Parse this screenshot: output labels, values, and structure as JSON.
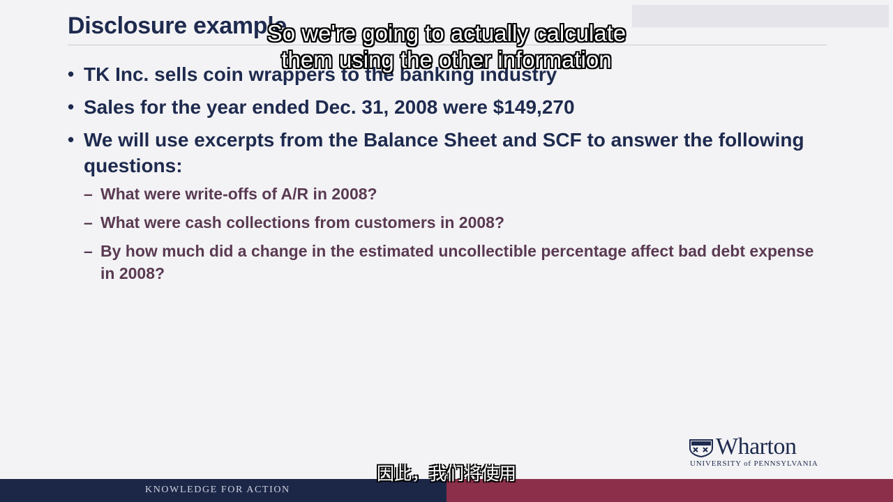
{
  "slide": {
    "title": "Disclosure example",
    "bullets": [
      {
        "text": "TK Inc. sells coin wrappers to the banking industry"
      },
      {
        "text": "Sales for the year ended Dec. 31, 2008 were $149,270"
      },
      {
        "text": "We will use excerpts from the Balance Sheet and SCF to answer the following questions:",
        "sub": [
          "What were write-offs of A/R in 2008?",
          "What were cash collections from customers in 2008?",
          "By how much did a change in the estimated uncollectible percentage affect bad debt expense in 2008?"
        ]
      }
    ],
    "bullet_glyph": "•",
    "sub_glyph": "–"
  },
  "subtitles": {
    "english_line1": "So we're going to actually calculate",
    "english_line2": "them using the other information",
    "chinese": "因此，我们将使用"
  },
  "logo": {
    "wordmark": "Wharton",
    "subline": "UNIVERSITY of PENNSYLVANIA",
    "icon": "penn-shield-icon"
  },
  "footer": {
    "tagline": "KNOWLEDGE FOR ACTION"
  },
  "colors": {
    "title_navy": "#1e2a4e",
    "sub_bullet_plum": "#5a3a52",
    "footer_navy": "#1c2748",
    "footer_burgundy": "#8b2f4a",
    "background": "#f3f3f5"
  }
}
